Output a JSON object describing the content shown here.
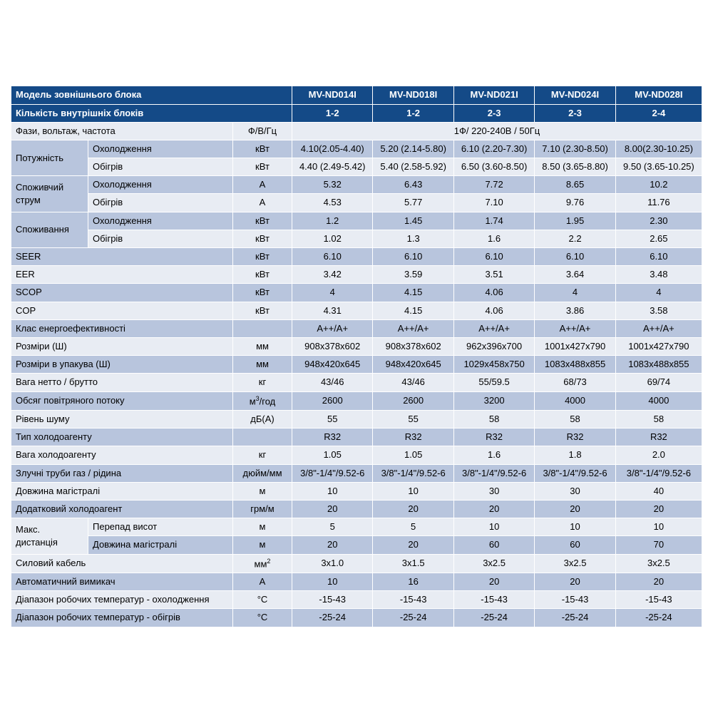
{
  "colors": {
    "header_bg": "#144a87",
    "header_fg": "#ffffff",
    "row_light": "#e8ecf3",
    "row_blue": "#b8c5dd",
    "border": "#ffffff"
  },
  "headers": {
    "model_label": "Модель зовнішнього блока",
    "units_label": "Кількість внутрішніх блоків",
    "models": [
      "MV-ND014I",
      "MV-ND018I",
      "MV-ND021I",
      "MV-ND024I",
      "MV-ND028I"
    ],
    "unit_counts": [
      "1-2",
      "1-2",
      "2-3",
      "2-3",
      "2-4"
    ]
  },
  "rows": {
    "phase": {
      "label": "Фази, вольтаж, частота",
      "unit": "Ф/В/Гц",
      "span": "1Ф/ 220-240В / 50Гц"
    },
    "power": {
      "group": "Потужність",
      "r1": {
        "label": "Охолодження",
        "unit": "кВт",
        "v": [
          "4.10(2.05-4.40)",
          "5.20 (2.14-5.80)",
          "6.10 (2.20-7.30)",
          "7.10 (2.30-8.50)",
          "8.00(2.30-10.25)"
        ]
      },
      "r2": {
        "label": "Обігрів",
        "unit": "кВт",
        "v": [
          "4.40 (2.49-5.42)",
          "5.40 (2.58-5.92)",
          "6.50 (3.60-8.50)",
          "8.50 (3.65-8.80)",
          "9.50 (3.65-10.25)"
        ]
      }
    },
    "current": {
      "group": "Споживчий струм",
      "r1": {
        "label": "Охолодження",
        "unit": "А",
        "v": [
          "5.32",
          "6.43",
          "7.72",
          "8.65",
          "10.2"
        ]
      },
      "r2": {
        "label": "Обігрів",
        "unit": "А",
        "v": [
          "4.53",
          "5.77",
          "7.10",
          "9.76",
          "11.76"
        ]
      }
    },
    "consumption": {
      "group": "Споживання",
      "r1": {
        "label": "Охолодження",
        "unit": "кВт",
        "v": [
          "1.2",
          "1.45",
          "1.74",
          "1.95",
          "2.30"
        ]
      },
      "r2": {
        "label": "Обігрів",
        "unit": "кВт",
        "v": [
          "1.02",
          "1.3",
          "1.6",
          "2.2",
          "2.65"
        ]
      }
    },
    "seer": {
      "label": "SEER",
      "unit": "кВт",
      "v": [
        "6.10",
        "6.10",
        "6.10",
        "6.10",
        "6.10"
      ]
    },
    "eer": {
      "label": "EER",
      "unit": "кВт",
      "v": [
        "3.42",
        "3.59",
        "3.51",
        "3.64",
        "3.48"
      ]
    },
    "scop": {
      "label": "SCOP",
      "unit": "кВт",
      "v": [
        "4",
        "4.15",
        "4.06",
        "4",
        "4"
      ]
    },
    "cop": {
      "label": "COP",
      "unit": "кВт",
      "v": [
        "4.31",
        "4.15",
        "4.06",
        "3.86",
        "3.58"
      ]
    },
    "eclass": {
      "label": "Клас енергоефективності",
      "unit": "",
      "v": [
        "A++/A+",
        "A++/A+",
        "A++/A+",
        "A++/A+",
        "A++/A+"
      ]
    },
    "dims": {
      "label": "Розміри (Ш)",
      "unit": "мм",
      "v": [
        "908x378x602",
        "908x378x602",
        "962x396x700",
        "1001x427x790",
        "1001x427x790"
      ]
    },
    "dims_pack": {
      "label": "Розміри в упакува (Ш)",
      "unit": "мм",
      "v": [
        "948x420x645",
        "948x420x645",
        "1029x458x750",
        "1083x488x855",
        "1083x488x855"
      ]
    },
    "weight": {
      "label": "Вага нетто / брутто",
      "unit": "кг",
      "v": [
        "43/46",
        "43/46",
        "55/59.5",
        "68/73",
        "69/74"
      ]
    },
    "airflow": {
      "label": "Обсяг повітряного потоку",
      "unit": "м³/год",
      "v": [
        "2600",
        "2600",
        "3200",
        "4000",
        "4000"
      ]
    },
    "noise": {
      "label": "Рівень шуму",
      "unit": "дБ(А)",
      "v": [
        "55",
        "55",
        "58",
        "58",
        "58"
      ]
    },
    "refr_type": {
      "label": "Тип холодоагенту",
      "unit": "",
      "v": [
        "R32",
        "R32",
        "R32",
        "R32",
        "R32"
      ]
    },
    "refr_wt": {
      "label": "Вага холодоагенту",
      "unit": "кг",
      "v": [
        "1.05",
        "1.05",
        "1.6",
        "1.8",
        "2.0"
      ]
    },
    "pipes": {
      "label": "Злучні труби газ / рідина",
      "unit": "дюйм/мм",
      "v": [
        "3/8\"-1/4\"/9.52-6",
        "3/8\"-1/4\"/9.52-6",
        "3/8\"-1/4\"/9.52-6",
        "3/8\"-1/4\"/9.52-6",
        "3/8\"-1/4\"/9.52-6"
      ]
    },
    "length": {
      "label": "Довжина магістралі",
      "unit": "м",
      "v": [
        "10",
        "10",
        "30",
        "30",
        "40"
      ]
    },
    "extra_refr": {
      "label": "Додатковий холодоагент",
      "unit": "грм/м",
      "v": [
        "20",
        "20",
        "20",
        "20",
        "20"
      ]
    },
    "maxdist": {
      "group": "Макс. дистанція",
      "r1": {
        "label": "Перепад висот",
        "unit": "м",
        "v": [
          "5",
          "5",
          "10",
          "10",
          "10"
        ]
      },
      "r2": {
        "label": "Довжина магістралі",
        "unit": "м",
        "v": [
          "20",
          "20",
          "60",
          "60",
          "70"
        ]
      }
    },
    "cable": {
      "label": "Силовий кабель",
      "unit": "мм²",
      "v": [
        "3x1.0",
        "3x1.5",
        "3x2.5",
        "3x2.5",
        "3x2.5"
      ]
    },
    "breaker": {
      "label": "Автоматичний вимикач",
      "unit": "А",
      "v": [
        "10",
        "16",
        "20",
        "20",
        "20"
      ]
    },
    "temp_cool": {
      "label": "Діапазон робочих температур - охолодження",
      "unit": "°C",
      "v": [
        "-15-43",
        "-15-43",
        "-15-43",
        "-15-43",
        "-15-43"
      ]
    },
    "temp_heat": {
      "label": "Діапазон робочих температур - обігрів",
      "unit": "°C",
      "v": [
        "-25-24",
        "-25-24",
        "-25-24",
        "-25-24",
        "-25-24"
      ]
    }
  }
}
